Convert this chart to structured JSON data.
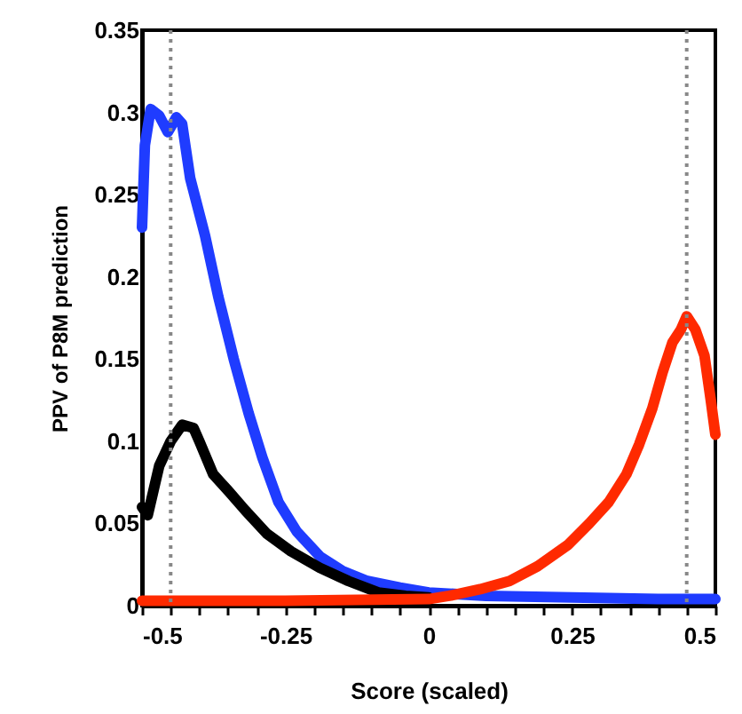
{
  "chart_data": {
    "type": "line",
    "xlabel": "Score (scaled)",
    "ylabel": "PPV of P8M prediction",
    "xlim": [
      -0.5,
      0.5
    ],
    "ylim": [
      0,
      0.35
    ],
    "xticks": [
      -0.5,
      {
        "value": -0.45,
        "label": null
      },
      {
        "value": -0.4,
        "label": null
      },
      {
        "value": -0.35,
        "label": null
      },
      {
        "value": -0.3,
        "label": null
      },
      -0.25,
      {
        "value": -0.2,
        "label": null
      },
      {
        "value": -0.15,
        "label": null
      },
      {
        "value": -0.1,
        "label": null
      },
      {
        "value": -0.05,
        "label": null
      },
      0,
      {
        "value": 0.05,
        "label": null
      },
      {
        "value": 0.1,
        "label": null
      },
      {
        "value": 0.15,
        "label": null
      },
      {
        "value": 0.2,
        "label": null
      },
      0.25,
      {
        "value": 0.3,
        "label": null
      },
      {
        "value": 0.35,
        "label": null
      },
      {
        "value": 0.4,
        "label": null
      },
      {
        "value": 0.45,
        "label": null
      },
      0.5
    ],
    "yticks": [
      0,
      0.05,
      0.1,
      0.15,
      0.2,
      0.25,
      0.3,
      0.35
    ],
    "grid": false,
    "marker": "none",
    "line_style": "solid",
    "ref_lines": [
      {
        "axis": "x",
        "value": -0.45,
        "label": null,
        "color": "#888888",
        "line_style": "dotted"
      },
      {
        "axis": "x",
        "value": 0.45,
        "label": null,
        "color": "#888888",
        "line_style": "dotted"
      }
    ],
    "series": [
      {
        "color": "#1f3cff",
        "x": [
          -0.5,
          -0.495,
          -0.485,
          -0.47,
          -0.455,
          -0.44,
          -0.43,
          -0.416,
          -0.39,
          -0.367,
          -0.34,
          -0.314,
          -0.29,
          -0.262,
          -0.23,
          -0.19,
          -0.15,
          -0.107,
          -0.05,
          0.0,
          0.1,
          0.25,
          0.4,
          0.5
        ],
        "values": [
          0.23,
          0.28,
          0.302,
          0.298,
          0.288,
          0.297,
          0.293,
          0.26,
          0.225,
          0.188,
          0.15,
          0.117,
          0.09,
          0.063,
          0.045,
          0.03,
          0.021,
          0.015,
          0.011,
          0.008,
          0.006,
          0.005,
          0.004,
          0.004
        ]
      },
      {
        "color": "#000000",
        "x": [
          -0.5,
          -0.49,
          -0.48,
          -0.47,
          -0.45,
          -0.43,
          -0.41,
          -0.4,
          -0.376,
          -0.35,
          -0.32,
          -0.283,
          -0.24,
          -0.19,
          -0.14,
          -0.088,
          -0.04,
          0.0
        ],
        "values": [
          0.06,
          0.055,
          0.07,
          0.085,
          0.1,
          0.11,
          0.108,
          0.1,
          0.08,
          0.07,
          0.058,
          0.044,
          0.033,
          0.023,
          0.015,
          0.008,
          0.006,
          0.005
        ]
      },
      {
        "color": "#ff2a00",
        "x": [
          -0.5,
          -0.25,
          0.0,
          0.036,
          0.09,
          0.141,
          0.19,
          0.243,
          0.28,
          0.314,
          0.345,
          0.367,
          0.39,
          0.408,
          0.425,
          0.44,
          0.45,
          0.465,
          0.481,
          0.492,
          0.5
        ],
        "values": [
          0.003,
          0.003,
          0.004,
          0.006,
          0.01,
          0.015,
          0.024,
          0.037,
          0.05,
          0.063,
          0.08,
          0.098,
          0.12,
          0.142,
          0.16,
          0.168,
          0.176,
          0.168,
          0.152,
          0.125,
          0.104
        ]
      }
    ]
  }
}
